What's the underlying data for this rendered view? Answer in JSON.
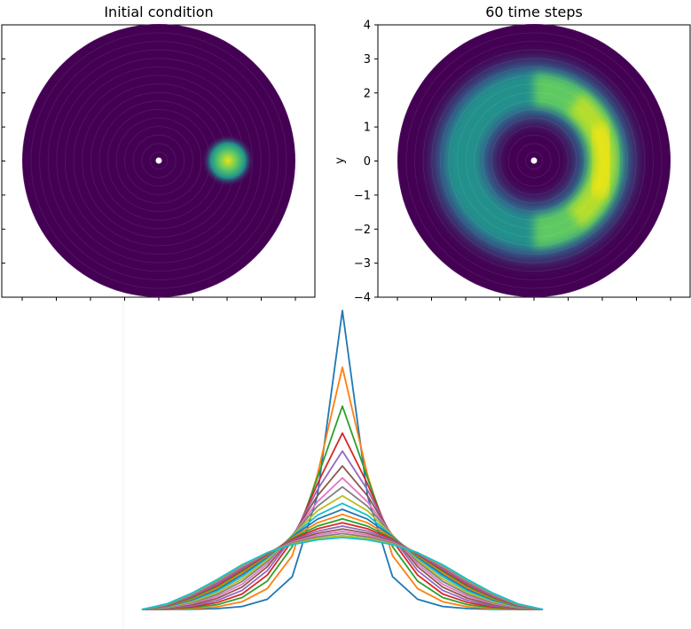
{
  "chart_data": [
    {
      "type": "heatmap",
      "title": "Initial condition",
      "xlabel": "",
      "ylabel": "",
      "xlim": [
        -4,
        4
      ],
      "ylim": [
        -4,
        4
      ],
      "domain": "disk",
      "radius": 4,
      "colormap": "viridis",
      "peak": {
        "x": 2.0,
        "y": 0.0,
        "width": 0.3
      },
      "yticks": [],
      "xticks": []
    },
    {
      "type": "heatmap",
      "title": "60 time steps",
      "xlabel": "",
      "ylabel": "y",
      "xlim": [
        -4,
        4
      ],
      "ylim": [
        -4,
        4
      ],
      "domain": "disk",
      "radius": 4,
      "colormap": "viridis",
      "ring": {
        "radius": 2.0,
        "width": 0.45,
        "brightest_angle_deg": 0
      },
      "yticks": [
        "4",
        "3",
        "2",
        "1",
        "0",
        "−1",
        "−2",
        "−3",
        "−4"
      ],
      "xticks": []
    },
    {
      "type": "line",
      "title": "",
      "xlabel": "",
      "ylabel": "",
      "x": [
        -4.0,
        -3.5,
        -3.0,
        -2.5,
        -2.0,
        -1.5,
        -1.0,
        -0.5,
        0.0,
        0.5,
        1.0,
        1.5,
        2.0,
        2.5,
        3.0,
        3.5,
        4.0
      ],
      "ylim": [
        0,
        1
      ],
      "series": [
        {
          "color": "#1f77b4",
          "values": [
            0.0,
            0.0,
            0.001,
            0.003,
            0.01,
            0.034,
            0.11,
            0.38,
            1.0,
            0.38,
            0.11,
            0.034,
            0.01,
            0.003,
            0.001,
            0.0,
            0.0
          ]
        },
        {
          "color": "#ff7f0e",
          "values": [
            0.0,
            0.001,
            0.003,
            0.009,
            0.026,
            0.07,
            0.18,
            0.45,
            0.81,
            0.45,
            0.18,
            0.07,
            0.026,
            0.009,
            0.003,
            0.001,
            0.0
          ]
        },
        {
          "color": "#2ca02c",
          "values": [
            0.0,
            0.002,
            0.006,
            0.016,
            0.04,
            0.095,
            0.21,
            0.44,
            0.68,
            0.44,
            0.21,
            0.095,
            0.04,
            0.016,
            0.006,
            0.002,
            0.0
          ]
        },
        {
          "color": "#d62728",
          "values": [
            0.0,
            0.003,
            0.009,
            0.023,
            0.052,
            0.115,
            0.23,
            0.42,
            0.59,
            0.42,
            0.23,
            0.115,
            0.052,
            0.023,
            0.009,
            0.003,
            0.0
          ]
        },
        {
          "color": "#9467bd",
          "values": [
            0.0,
            0.004,
            0.012,
            0.03,
            0.064,
            0.13,
            0.24,
            0.4,
            0.53,
            0.4,
            0.24,
            0.13,
            0.064,
            0.03,
            0.012,
            0.004,
            0.0
          ]
        },
        {
          "color": "#8c564b",
          "values": [
            0.0,
            0.005,
            0.016,
            0.037,
            0.075,
            0.143,
            0.245,
            0.38,
            0.48,
            0.38,
            0.245,
            0.143,
            0.075,
            0.037,
            0.016,
            0.005,
            0.0
          ]
        },
        {
          "color": "#e377c2",
          "values": [
            0.0,
            0.006,
            0.02,
            0.044,
            0.085,
            0.152,
            0.248,
            0.36,
            0.44,
            0.36,
            0.248,
            0.152,
            0.085,
            0.044,
            0.02,
            0.006,
            0.0
          ]
        },
        {
          "color": "#7f7f7f",
          "values": [
            0.0,
            0.007,
            0.023,
            0.05,
            0.094,
            0.16,
            0.248,
            0.345,
            0.41,
            0.345,
            0.248,
            0.16,
            0.094,
            0.05,
            0.023,
            0.007,
            0.0
          ]
        },
        {
          "color": "#bcbd22",
          "values": [
            0.0,
            0.008,
            0.026,
            0.056,
            0.102,
            0.166,
            0.247,
            0.33,
            0.38,
            0.33,
            0.247,
            0.166,
            0.102,
            0.056,
            0.026,
            0.008,
            0.0
          ]
        },
        {
          "color": "#17becf",
          "values": [
            0.0,
            0.009,
            0.03,
            0.062,
            0.11,
            0.172,
            0.245,
            0.315,
            0.355,
            0.315,
            0.245,
            0.172,
            0.11,
            0.062,
            0.03,
            0.009,
            0.0
          ]
        },
        {
          "color": "#1f77b4",
          "values": [
            0.0,
            0.01,
            0.033,
            0.067,
            0.117,
            0.176,
            0.243,
            0.302,
            0.335,
            0.302,
            0.243,
            0.176,
            0.117,
            0.067,
            0.033,
            0.01,
            0.0
          ]
        },
        {
          "color": "#ff7f0e",
          "values": [
            0.0,
            0.011,
            0.036,
            0.072,
            0.123,
            0.18,
            0.24,
            0.29,
            0.318,
            0.29,
            0.24,
            0.18,
            0.123,
            0.072,
            0.036,
            0.011,
            0.0
          ]
        },
        {
          "color": "#2ca02c",
          "values": [
            0.0,
            0.012,
            0.039,
            0.077,
            0.128,
            0.183,
            0.237,
            0.279,
            0.303,
            0.279,
            0.237,
            0.183,
            0.128,
            0.077,
            0.039,
            0.012,
            0.0
          ]
        },
        {
          "color": "#d62728",
          "values": [
            0.0,
            0.013,
            0.042,
            0.081,
            0.132,
            0.185,
            0.234,
            0.27,
            0.29,
            0.27,
            0.234,
            0.185,
            0.132,
            0.081,
            0.042,
            0.013,
            0.0
          ]
        },
        {
          "color": "#9467bd",
          "values": [
            0.0,
            0.014,
            0.044,
            0.085,
            0.136,
            0.187,
            0.231,
            0.262,
            0.279,
            0.262,
            0.231,
            0.187,
            0.136,
            0.085,
            0.044,
            0.014,
            0.0
          ]
        },
        {
          "color": "#8c564b",
          "values": [
            0.0,
            0.015,
            0.047,
            0.089,
            0.14,
            0.188,
            0.228,
            0.255,
            0.269,
            0.255,
            0.228,
            0.188,
            0.14,
            0.089,
            0.047,
            0.015,
            0.0
          ]
        },
        {
          "color": "#e377c2",
          "values": [
            0.0,
            0.016,
            0.049,
            0.092,
            0.143,
            0.189,
            0.225,
            0.249,
            0.261,
            0.249,
            0.225,
            0.189,
            0.143,
            0.092,
            0.049,
            0.016,
            0.0
          ]
        },
        {
          "color": "#7f7f7f",
          "values": [
            0.0,
            0.017,
            0.051,
            0.095,
            0.146,
            0.19,
            0.222,
            0.243,
            0.254,
            0.243,
            0.222,
            0.19,
            0.146,
            0.095,
            0.051,
            0.017,
            0.0
          ]
        },
        {
          "color": "#bcbd22",
          "values": [
            0.0,
            0.018,
            0.053,
            0.098,
            0.148,
            0.19,
            0.219,
            0.238,
            0.247,
            0.238,
            0.219,
            0.19,
            0.148,
            0.098,
            0.053,
            0.018,
            0.0
          ]
        },
        {
          "color": "#17becf",
          "values": [
            0.0,
            0.019,
            0.055,
            0.1,
            0.15,
            0.19,
            0.217,
            0.233,
            0.241,
            0.233,
            0.217,
            0.19,
            0.15,
            0.1,
            0.055,
            0.019,
            0.0
          ]
        }
      ]
    }
  ]
}
